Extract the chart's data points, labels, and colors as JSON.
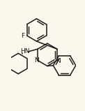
{
  "bg_color": "#fdf8ee",
  "line_color": "#1a1a1a",
  "line_width": 1.1,
  "text_color": "#1a1a1a",
  "figsize": [
    1.22,
    1.59
  ],
  "dpi": 100,
  "xlim": [
    0,
    122
  ],
  "ylim": [
    0,
    159
  ]
}
